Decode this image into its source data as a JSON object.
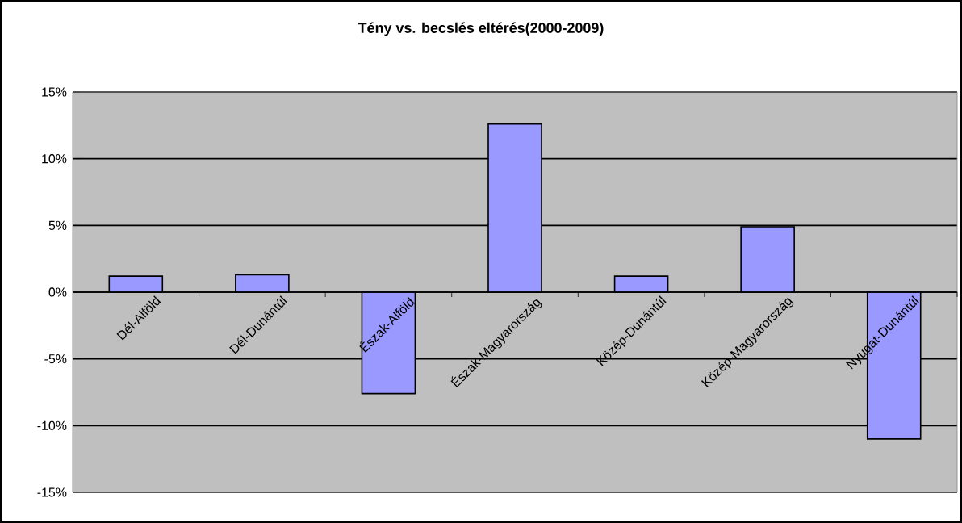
{
  "chart_data": {
    "type": "bar",
    "title": "Tény vs. becslés eltérés(2000-2009)",
    "categories": [
      "Dél-Alföld",
      "Dél-Dunántúl",
      "Észak-Alföld",
      "Észak-Magyarország",
      "Közép-Dunántúl",
      "Közép-Magyarország",
      "Nyugat-Dunántúl"
    ],
    "values": [
      1.2,
      1.3,
      -7.6,
      12.6,
      1.2,
      4.9,
      -11.0
    ],
    "color": "#9999ff",
    "ylim": [
      -15,
      15
    ],
    "yticks": [
      {
        "value": -15,
        "label": "-15%"
      },
      {
        "value": -10,
        "label": "-10%"
      },
      {
        "value": -5,
        "label": "-5%"
      },
      {
        "value": 0,
        "label": "0%"
      },
      {
        "value": 5,
        "label": "5%"
      },
      {
        "value": 10,
        "label": "10%"
      },
      {
        "value": 15,
        "label": "15%"
      }
    ],
    "grid": "y"
  }
}
